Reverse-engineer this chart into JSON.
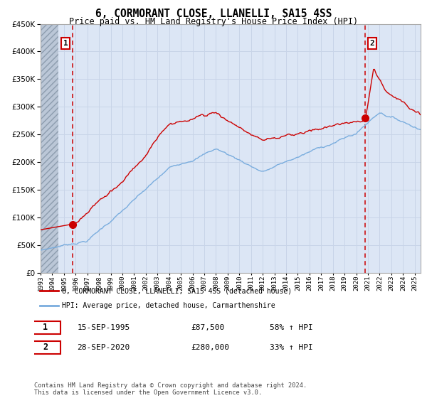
{
  "title": "6, CORMORANT CLOSE, LLANELLI, SA15 4SS",
  "subtitle": "Price paid vs. HM Land Registry's House Price Index (HPI)",
  "ylim": [
    0,
    450000
  ],
  "yticks": [
    0,
    50000,
    100000,
    150000,
    200000,
    250000,
    300000,
    350000,
    400000,
    450000
  ],
  "hpi_color": "#7aadde",
  "price_color": "#cc0000",
  "sale1_x": 1995.75,
  "sale2_x": 2020.75,
  "sale1_price": 87500,
  "sale2_price": 280000,
  "sale1_date": "15-SEP-1995",
  "sale1_amount": "£87,500",
  "sale1_hpi": "58% ↑ HPI",
  "sale2_date": "28-SEP-2020",
  "sale2_amount": "£280,000",
  "sale2_hpi": "33% ↑ HPI",
  "legend_line1": "6, CORMORANT CLOSE, LLANELLI, SA15 4SS (detached house)",
  "legend_line2": "HPI: Average price, detached house, Carmarthenshire",
  "footnote": "Contains HM Land Registry data © Crown copyright and database right 2024.\nThis data is licensed under the Open Government Licence v3.0.",
  "grid_color": "#c8d4e8",
  "plot_bg": "#dce6f5",
  "hatch_color": "#b0b8c8",
  "xmin": 1993,
  "xmax": 2025.5
}
